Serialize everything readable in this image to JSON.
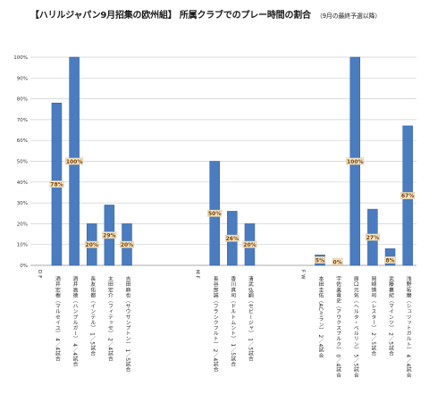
{
  "title": "【ハリルジャパン9月招集の欧州組】 所属クラブでのプレー時間の割合",
  "title_note": "（9月の最終予選以降）",
  "chart_data": {
    "type": "bar",
    "title": "【ハリルジャパン9月招集の欧州組】 所属クラブでのプレー時間の割合",
    "subtitle": "（9月の最終予選以降）",
    "ylim": [
      0,
      100
    ],
    "yticks": [
      "0%",
      "10%",
      "20%",
      "30%",
      "40%",
      "50%",
      "60%",
      "70%",
      "80%",
      "90%",
      "100%"
    ],
    "grid": true,
    "bar_color": "#4a7cbf",
    "groups": [
      {
        "label": "DF",
        "slot": 0
      },
      {
        "label": "MF",
        "slot": 9
      },
      {
        "label": "FW",
        "slot": 15
      }
    ],
    "categories": [
      "酒井宏樹（マルセイユ） 4／4試合",
      "酒井高徳（ハンブルガー） 4／4試合",
      "長友佑都（インテル） 1／5試合",
      "太田宏介（フィテッセ） 2／4試合",
      "吉田麻也（サウサンプトン） 1／5試合",
      "長谷部誠（フランクフルト） 2／4試合",
      "香川真司（ドルトムント） 1／5試合",
      "清武弘嗣（セビージャ） 1／5試合",
      "本田圭佑（ACミラン） 2／4試合",
      "宇佐美貴史（アウクスブルク） 0／4試合",
      "原口元気（ヘルタ・ベルリン） 5／5試合",
      "岡崎慎司（レスター） 2／5試合",
      "武藤嘉紀（マインツ） 2／5試合",
      "浅野拓磨（シュツットガルト） 4／4試合"
    ],
    "slots": [
      1,
      2,
      3,
      4,
      5,
      10,
      11,
      12,
      16,
      17,
      18,
      19,
      20,
      21
    ],
    "values": [
      78,
      100,
      20,
      29,
      20,
      50,
      26,
      20,
      5,
      0,
      100,
      27,
      8,
      67
    ],
    "data_labels": [
      "78%",
      "100%",
      "20%",
      "29%",
      "20%",
      "50%",
      "26%",
      "20%",
      "5%",
      "0%",
      "100%",
      "27%",
      "8%",
      "67%"
    ],
    "xlabel": "",
    "ylabel": ""
  }
}
